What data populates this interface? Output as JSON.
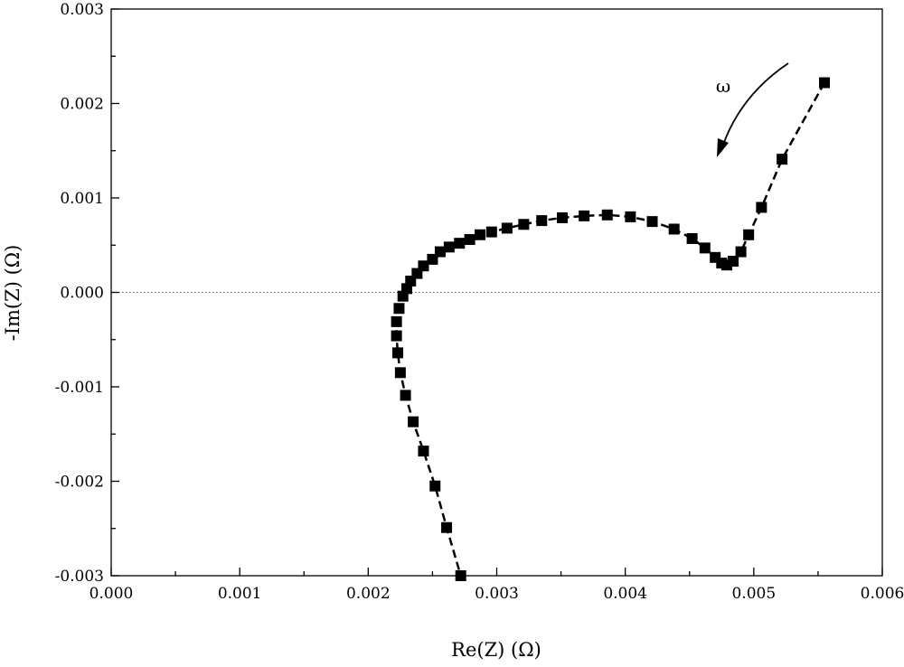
{
  "chart_data": {
    "type": "scatter",
    "title": "",
    "xlabel": "Re(Z) (Ω)",
    "ylabel": "-Im(Z) (Ω)",
    "xlim": [
      0.0,
      0.006
    ],
    "ylim": [
      -0.003,
      0.003
    ],
    "x_ticks": [
      "0.000",
      "0.001",
      "0.002",
      "0.003",
      "0.004",
      "0.005",
      "0.006"
    ],
    "y_ticks": [
      "-0.003",
      "-0.002",
      "-0.001",
      "0.000",
      "0.001",
      "0.002",
      "0.003"
    ],
    "grid": false,
    "legend": "none",
    "zero_line": true,
    "marker": "square",
    "line_style": "dashed",
    "color": "#000000",
    "annotation": {
      "text": "ω",
      "arrow_direction": "decreasing frequency toward lower Re(Z)"
    },
    "series": [
      {
        "points": [
          [
            0.00555,
            0.00222
          ],
          [
            0.00522,
            0.00141
          ],
          [
            0.00506,
            0.0009
          ],
          [
            0.00496,
            0.00061
          ],
          [
            0.0049,
            0.00043
          ],
          [
            0.00484,
            0.00033
          ],
          [
            0.00479,
            0.00029
          ],
          [
            0.00475,
            0.00031
          ],
          [
            0.0047,
            0.00037
          ],
          [
            0.00462,
            0.00047
          ],
          [
            0.00452,
            0.00057
          ],
          [
            0.00438,
            0.00067
          ],
          [
            0.00421,
            0.00075
          ],
          [
            0.00404,
            0.0008
          ],
          [
            0.00386,
            0.00082
          ],
          [
            0.00368,
            0.00081
          ],
          [
            0.00351,
            0.00079
          ],
          [
            0.00335,
            0.00076
          ],
          [
            0.00321,
            0.00072
          ],
          [
            0.00308,
            0.00068
          ],
          [
            0.00296,
            0.00064
          ],
          [
            0.00287,
            0.00061
          ],
          [
            0.00279,
            0.00056
          ],
          [
            0.00271,
            0.00052
          ],
          [
            0.00263,
            0.00048
          ],
          [
            0.00256,
            0.00043
          ],
          [
            0.0025,
            0.00035
          ],
          [
            0.00243,
            0.00028
          ],
          [
            0.00238,
            0.0002
          ],
          [
            0.00233,
            0.00012
          ],
          [
            0.0023,
            4e-05
          ],
          [
            0.00227,
            -4e-05
          ],
          [
            0.00224,
            -0.00017
          ],
          [
            0.00222,
            -0.00031
          ],
          [
            0.00222,
            -0.00046
          ],
          [
            0.00223,
            -0.00064
          ],
          [
            0.00225,
            -0.00085
          ],
          [
            0.00229,
            -0.00109
          ],
          [
            0.00235,
            -0.00137
          ],
          [
            0.00243,
            -0.00168
          ],
          [
            0.00252,
            -0.00205
          ],
          [
            0.00261,
            -0.00249
          ],
          [
            0.00272,
            -0.003
          ]
        ]
      }
    ]
  }
}
